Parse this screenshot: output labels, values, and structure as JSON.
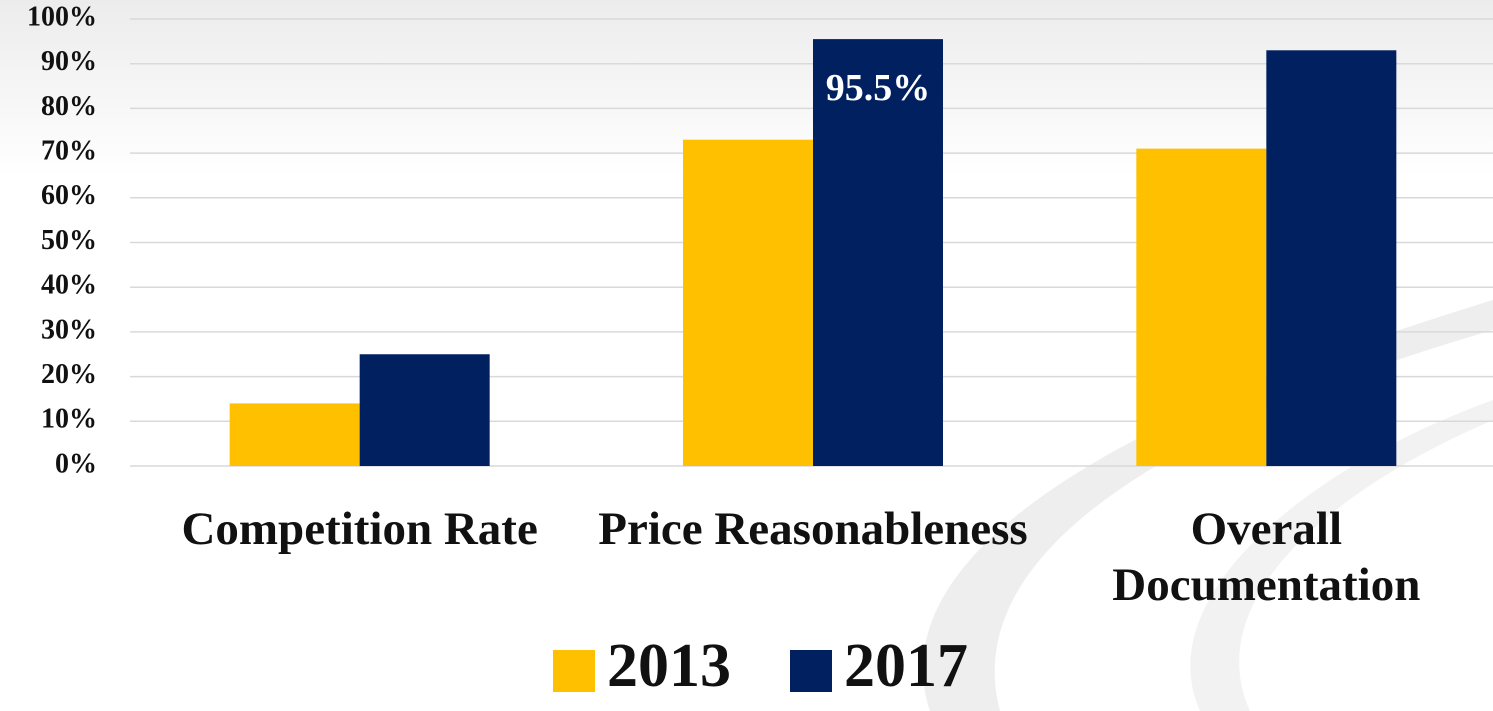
{
  "chart_data": {
    "type": "bar",
    "categories": [
      "Competition Rate",
      "Price Reasonableness",
      "Overall Documentation"
    ],
    "series": [
      {
        "name": "2013",
        "color": "#ffc000",
        "values": [
          14,
          73,
          71
        ]
      },
      {
        "name": "2017",
        "color": "#002060",
        "values": [
          25,
          95.5,
          93
        ],
        "value_labels": [
          null,
          "95.5%",
          null
        ]
      }
    ],
    "ylim": [
      0,
      100
    ],
    "yticks": [
      {
        "value": 0,
        "label": "0%"
      },
      {
        "value": 10,
        "label": "10%"
      },
      {
        "value": 20,
        "label": "20%"
      },
      {
        "value": 30,
        "label": "30%"
      },
      {
        "value": 40,
        "label": "40%"
      },
      {
        "value": 50,
        "label": "50%"
      },
      {
        "value": 60,
        "label": "60%"
      },
      {
        "value": 70,
        "label": "70%"
      },
      {
        "value": 80,
        "label": "80%"
      },
      {
        "value": 90,
        "label": "90%"
      },
      {
        "value": 100,
        "label": "100%"
      }
    ],
    "grid": true,
    "legend": "bottom"
  }
}
